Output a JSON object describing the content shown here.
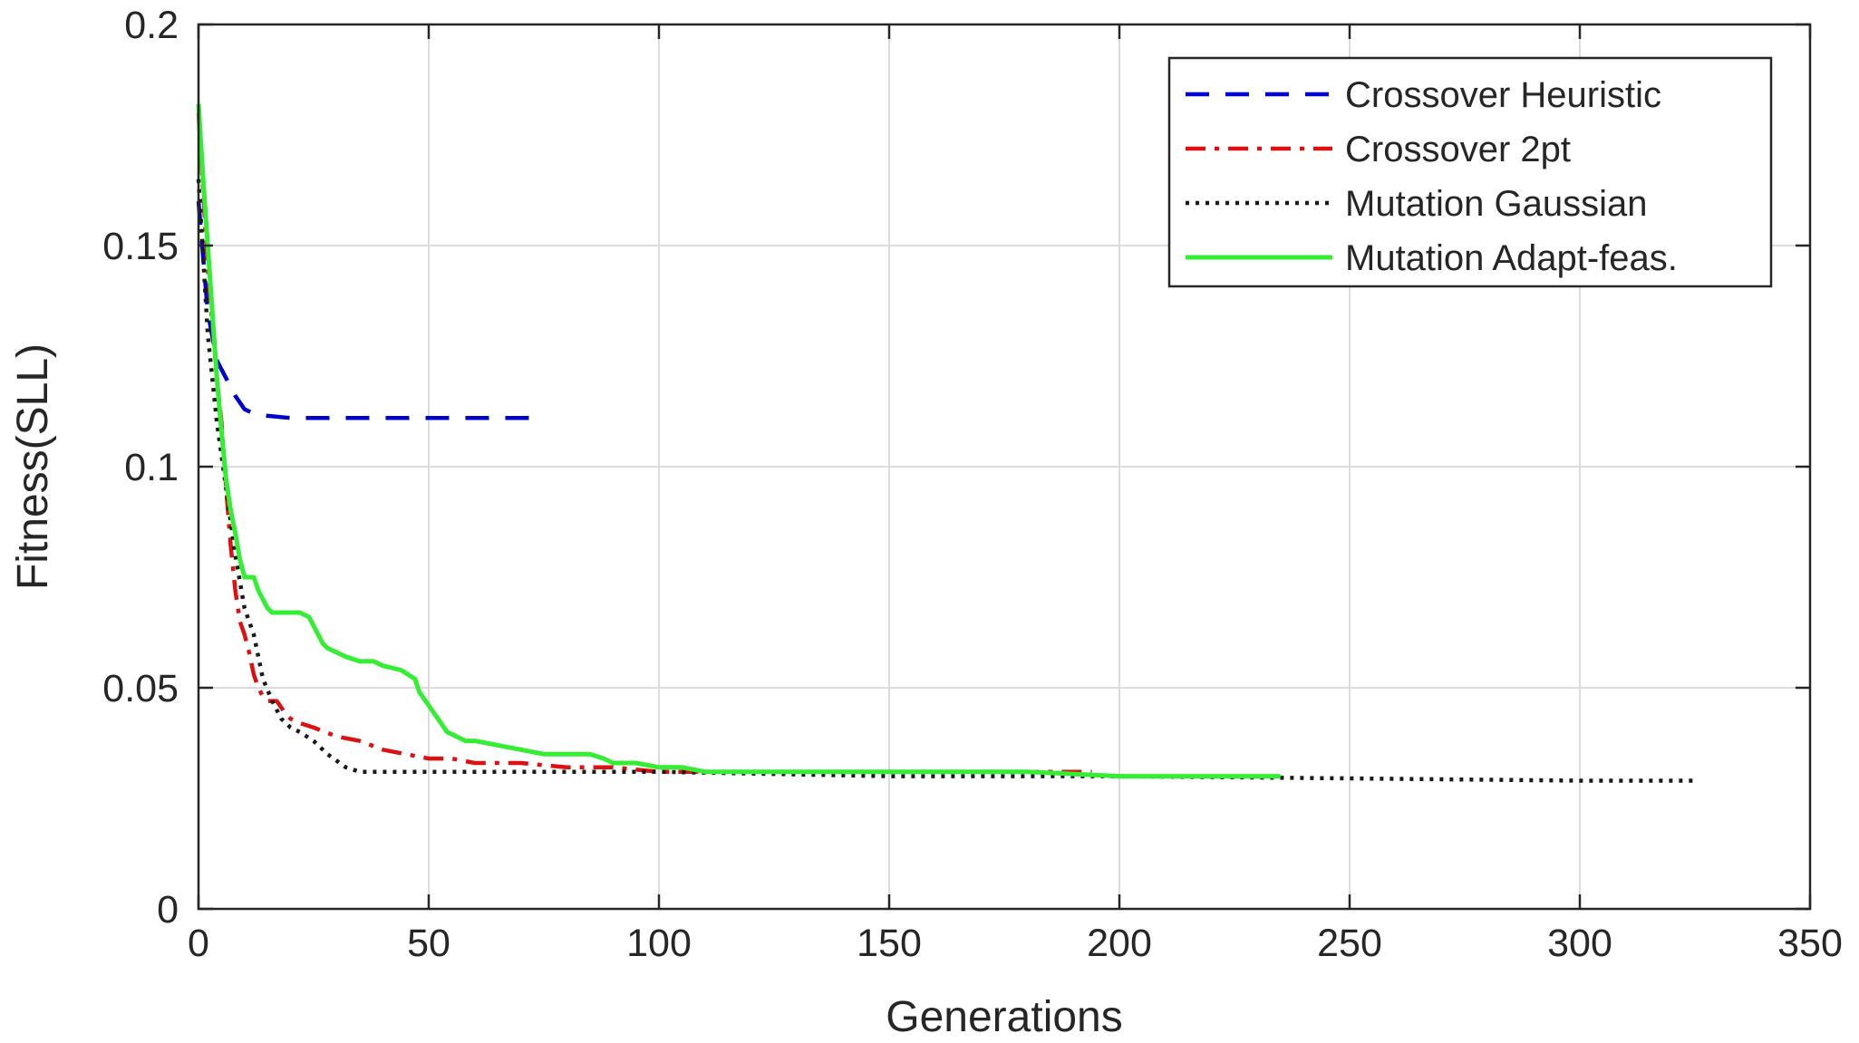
{
  "chart_data": {
    "type": "line",
    "title": "",
    "xlabel": "Generations",
    "ylabel": "Fitness(SLL)",
    "xlim": [
      0,
      350
    ],
    "ylim": [
      0,
      0.2
    ],
    "xticks": [
      0,
      50,
      100,
      150,
      200,
      250,
      300,
      350
    ],
    "yticks": [
      0,
      0.05,
      0.1,
      0.15,
      0.2
    ],
    "xtick_labels": [
      "0",
      "50",
      "100",
      "150",
      "200",
      "250",
      "300",
      "350"
    ],
    "ytick_labels": [
      "0",
      "0.05",
      "0.1",
      "0.15",
      "0.2"
    ],
    "grid": true,
    "legend_position": "top-right",
    "series": [
      {
        "name": "Crossover Heuristic",
        "color": "#0000cd",
        "style": "dashed",
        "x": [
          0,
          2,
          4,
          6,
          8,
          10,
          12,
          15,
          20,
          30,
          40,
          50,
          60,
          72
        ],
        "y": [
          0.16,
          0.135,
          0.124,
          0.12,
          0.116,
          0.113,
          0.112,
          0.1115,
          0.111,
          0.111,
          0.111,
          0.111,
          0.111,
          0.111
        ]
      },
      {
        "name": "Crossover 2pt",
        "color": "#dd1111",
        "style": "dashdot",
        "x": [
          0,
          2,
          4,
          5,
          6,
          7,
          8,
          9,
          10,
          11,
          12,
          13,
          14,
          15,
          17,
          19,
          20,
          22,
          25,
          30,
          35,
          40,
          45,
          50,
          55,
          60,
          70,
          80,
          90,
          100,
          120,
          150,
          194
        ],
        "y": [
          0.18,
          0.145,
          0.12,
          0.11,
          0.095,
          0.082,
          0.072,
          0.065,
          0.062,
          0.058,
          0.053,
          0.05,
          0.048,
          0.047,
          0.047,
          0.044,
          0.043,
          0.042,
          0.041,
          0.039,
          0.038,
          0.036,
          0.035,
          0.034,
          0.034,
          0.033,
          0.033,
          0.032,
          0.032,
          0.031,
          0.031,
          0.031,
          0.031
        ]
      },
      {
        "name": "Mutation Gaussian",
        "color": "#1a1a1a",
        "style": "dotted",
        "x": [
          0,
          2,
          4,
          6,
          8,
          10,
          12,
          14,
          16,
          18,
          20,
          22,
          25,
          28,
          32,
          35,
          40,
          50,
          100,
          150,
          200,
          250,
          300,
          325
        ],
        "y": [
          0.165,
          0.13,
          0.11,
          0.095,
          0.08,
          0.068,
          0.062,
          0.052,
          0.047,
          0.043,
          0.041,
          0.04,
          0.038,
          0.035,
          0.032,
          0.031,
          0.031,
          0.031,
          0.031,
          0.03,
          0.03,
          0.0295,
          0.029,
          0.029
        ]
      },
      {
        "name": "Mutation Adapt-feas.",
        "color": "#33ee33",
        "style": "solid",
        "x": [
          0,
          1,
          2,
          3,
          4,
          5,
          6,
          7,
          8,
          9,
          10,
          12,
          13,
          14,
          15,
          16,
          18,
          20,
          22,
          24,
          25,
          26,
          27,
          28,
          30,
          32,
          35,
          38,
          40,
          44,
          47,
          48,
          50,
          52,
          54,
          56,
          58,
          60,
          65,
          70,
          75,
          80,
          85,
          88,
          90,
          95,
          100,
          105,
          110,
          120,
          130,
          140,
          150,
          160,
          175,
          180,
          200,
          220,
          235
        ],
        "y": [
          0.182,
          0.165,
          0.15,
          0.135,
          0.12,
          0.108,
          0.097,
          0.09,
          0.085,
          0.079,
          0.075,
          0.075,
          0.072,
          0.07,
          0.068,
          0.067,
          0.067,
          0.067,
          0.067,
          0.066,
          0.064,
          0.062,
          0.06,
          0.059,
          0.058,
          0.057,
          0.056,
          0.056,
          0.055,
          0.054,
          0.052,
          0.049,
          0.046,
          0.043,
          0.04,
          0.039,
          0.038,
          0.038,
          0.037,
          0.036,
          0.035,
          0.035,
          0.035,
          0.034,
          0.033,
          0.033,
          0.032,
          0.032,
          0.031,
          0.031,
          0.031,
          0.031,
          0.031,
          0.031,
          0.031,
          0.031,
          0.03,
          0.03,
          0.03
        ]
      }
    ]
  }
}
